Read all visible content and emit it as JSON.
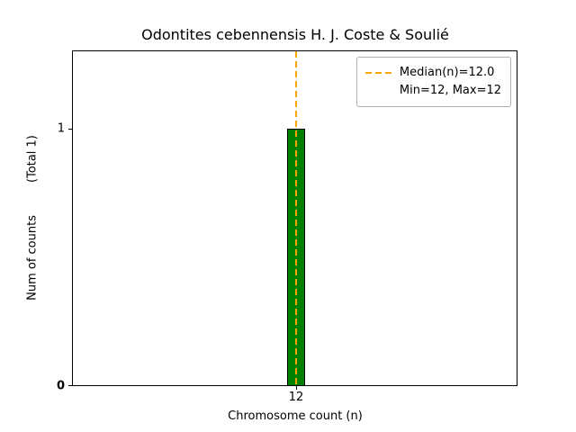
{
  "title": "Odontites cebennensis H. J. Coste & Soulié",
  "axes": {
    "xlabel": "Chromosome count (n)",
    "ylabel": "Num of counts",
    "ylabel_suffix": "(Total 1)",
    "yticks": [
      "0",
      "1"
    ],
    "xticks": [
      "12"
    ]
  },
  "legend": {
    "median_label": "Median(n)=12.0",
    "minmax_label": "Min=12, Max=12"
  },
  "colors": {
    "bar_fill": "#008000",
    "bar_edge": "#000000",
    "median_line": "#FFA500"
  },
  "chart_data": {
    "type": "bar",
    "title": "Odontites cebennensis H. J. Coste & Soulié",
    "categories": [
      "12"
    ],
    "values": [
      1
    ],
    "xlabel": "Chromosome count (n)",
    "ylabel": "Num of counts (Total 1)",
    "ylim": [
      0,
      1.3
    ],
    "xticks": [
      12
    ],
    "yticks": [
      0,
      1
    ],
    "grid": false,
    "legend_position": "upper right",
    "legend_entries": [
      "Median(n)=12.0",
      "Min=12, Max=12"
    ],
    "median": 12.0,
    "min": 12,
    "max": 12,
    "total_counts": 1,
    "annotations": [
      {
        "type": "vline",
        "x": 12,
        "style": "dashed",
        "color": "#FFA500",
        "label": "Median(n)=12.0"
      }
    ]
  }
}
